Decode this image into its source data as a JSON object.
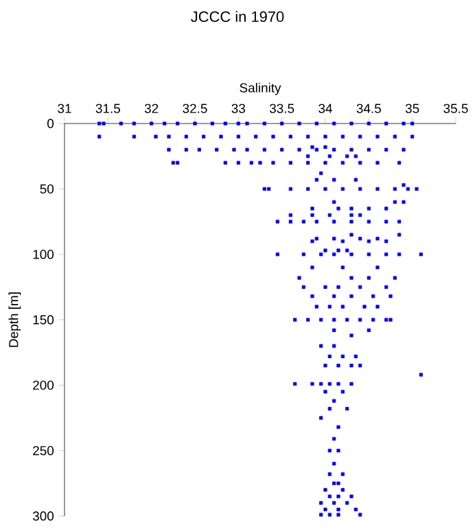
{
  "chart_data": {
    "type": "scatter",
    "title": "JCCC in 1970",
    "xlabel": "Salinity",
    "ylabel": "Depth [m]",
    "xlim": [
      31,
      35.5
    ],
    "xticks": [
      31,
      31.5,
      32,
      32.5,
      33,
      33.5,
      34,
      34.5,
      35,
      35.5
    ],
    "ylim": [
      300,
      0
    ],
    "yticks": [
      0,
      50,
      100,
      150,
      200,
      250,
      300
    ],
    "marker": "square",
    "series": [
      {
        "color": "#0000ff",
        "x": [
          31.4,
          31.45,
          31.65,
          31.8,
          32.0,
          32.15,
          32.3,
          32.5,
          32.7,
          32.85,
          33.0,
          33.1,
          33.3,
          33.5,
          33.7,
          33.9,
          34.1,
          34.3,
          34.5,
          34.7,
          34.9,
          35.0,
          31.4,
          31.8,
          32.05,
          32.2,
          32.4,
          32.6,
          32.8,
          33.0,
          33.2,
          33.4,
          33.6,
          33.8,
          34.0,
          34.2,
          34.4,
          34.6,
          34.8,
          35.0,
          32.2,
          32.4,
          32.55,
          32.75,
          32.95,
          33.1,
          33.3,
          33.5,
          33.7,
          33.9,
          34.1,
          34.3,
          34.5,
          34.7,
          34.9,
          33.85,
          34.0,
          32.25,
          32.3,
          32.85,
          33.0,
          33.15,
          33.25,
          33.4,
          33.6,
          33.8,
          34.0,
          34.2,
          34.4,
          34.6,
          34.85,
          33.8,
          34.05,
          34.25,
          34.35,
          33.95,
          33.9,
          34.1,
          34.35,
          33.3,
          33.35,
          33.6,
          33.8,
          34.0,
          34.2,
          34.4,
          34.6,
          34.8,
          34.95,
          35.05,
          34.9,
          34.1,
          34.8,
          34.9,
          33.85,
          34.15,
          34.3,
          34.5,
          34.7,
          33.6,
          33.85,
          34.05,
          34.3,
          34.4,
          33.45,
          33.6,
          33.75,
          33.9,
          34.1,
          34.3,
          34.5,
          34.7,
          34.85,
          34.3,
          34.85,
          33.9,
          34.1,
          34.4,
          34.6,
          33.85,
          34.2,
          34.5,
          34.7,
          33.45,
          33.75,
          33.95,
          34.1,
          34.3,
          34.5,
          34.7,
          34.85,
          35.1,
          34.0,
          34.15,
          34.25,
          33.85,
          34.2,
          34.6,
          33.7,
          34.3,
          34.5,
          34.8,
          33.75,
          34.0,
          34.15,
          34.4,
          34.7,
          33.85,
          34.1,
          34.3,
          34.55,
          34.75,
          33.9,
          34.05,
          34.2,
          34.45,
          34.6,
          33.65,
          33.8,
          33.95,
          34.1,
          34.25,
          34.4,
          34.55,
          34.7,
          34.75,
          34.1,
          34.5,
          34.3,
          33.95,
          34.1,
          34.05,
          34.2,
          34.35,
          34.0,
          34.15,
          34.3,
          34.4,
          35.1,
          33.65,
          33.85,
          33.95,
          34.05,
          34.15,
          34.3,
          34.0,
          34.2,
          34.1,
          34.05,
          34.25,
          33.95,
          34.15,
          34.1,
          34.05,
          34.15,
          34.1,
          34.05,
          34.2,
          34.1,
          34.15,
          34.0,
          34.2,
          34.05,
          34.15,
          34.3,
          33.95,
          34.1,
          34.25,
          34.0,
          34.15,
          34.35,
          33.95,
          34.05,
          34.15,
          34.4
        ],
        "values": [
          0,
          0,
          0,
          0,
          0,
          0,
          0,
          0,
          0,
          0,
          0,
          0,
          0,
          0,
          0,
          0,
          0,
          0,
          0,
          0,
          0,
          0,
          10,
          10,
          10,
          10,
          10,
          10,
          10,
          10,
          10,
          10,
          10,
          10,
          10,
          10,
          10,
          10,
          10,
          10,
          20,
          20,
          20,
          20,
          20,
          20,
          20,
          20,
          20,
          20,
          20,
          20,
          20,
          20,
          20,
          18,
          18,
          30,
          30,
          30,
          30,
          30,
          30,
          30,
          30,
          30,
          30,
          30,
          30,
          30,
          30,
          25,
          25,
          25,
          25,
          38,
          43,
          43,
          43,
          50,
          50,
          50,
          50,
          50,
          50,
          50,
          50,
          50,
          50,
          50,
          47,
          60,
          60,
          60,
          65,
          65,
          65,
          65,
          65,
          70,
          70,
          70,
          70,
          70,
          75,
          75,
          75,
          75,
          75,
          75,
          75,
          75,
          75,
          85,
          85,
          88,
          88,
          88,
          88,
          90,
          90,
          90,
          90,
          100,
          100,
          100,
          100,
          100,
          100,
          100,
          100,
          100,
          97,
          97,
          97,
          110,
          110,
          110,
          118,
          118,
          118,
          118,
          125,
          125,
          125,
          125,
          125,
          132,
          132,
          132,
          132,
          132,
          140,
          140,
          140,
          140,
          140,
          150,
          150,
          150,
          150,
          150,
          150,
          150,
          150,
          150,
          158,
          158,
          162,
          170,
          170,
          178,
          178,
          178,
          185,
          185,
          185,
          185,
          192,
          199,
          199,
          199,
          199,
          199,
          199,
          205,
          205,
          212,
          218,
          218,
          225,
          232,
          241,
          250,
          250,
          260,
          268,
          268,
          275,
          275,
          280,
          280,
          285,
          285,
          285,
          290,
          290,
          290,
          295,
          295,
          295,
          299,
          299,
          299,
          299
        ]
      }
    ]
  }
}
